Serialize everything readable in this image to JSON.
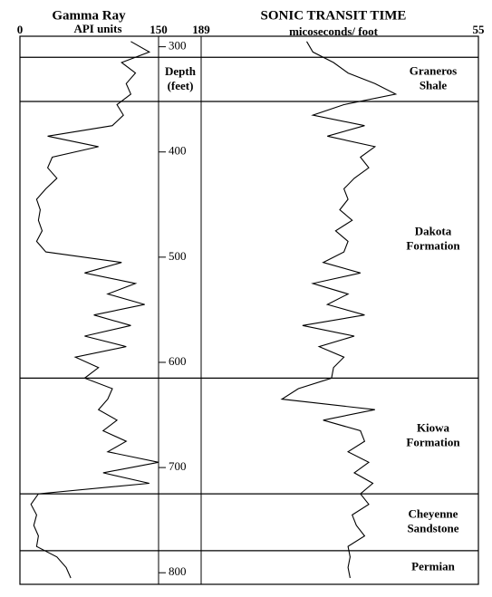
{
  "chart_data": {
    "type": "well-log",
    "depth_label": [
      "Depth",
      "(feet)"
    ],
    "ylim": [
      290,
      811
    ],
    "yticks": [
      300,
      400,
      500,
      600,
      700,
      800
    ],
    "depth": [
      295,
      305,
      315,
      325,
      335,
      345,
      355,
      365,
      375,
      385,
      395,
      405,
      415,
      425,
      435,
      445,
      455,
      465,
      475,
      485,
      495,
      505,
      515,
      525,
      535,
      545,
      555,
      565,
      575,
      585,
      595,
      605,
      615,
      625,
      635,
      645,
      655,
      665,
      675,
      685,
      695,
      705,
      715,
      725,
      735,
      745,
      755,
      765,
      775,
      785,
      795,
      805
    ],
    "tracks": [
      {
        "title": "Gamma Ray",
        "units": "API units",
        "xlim": [
          0,
          150
        ],
        "xticks": [
          0,
          150
        ],
        "color": "#000000",
        "values": [
          120,
          140,
          110,
          125,
          115,
          120,
          105,
          112,
          100,
          30,
          85,
          35,
          30,
          40,
          28,
          18,
          22,
          20,
          24,
          18,
          28,
          110,
          70,
          125,
          95,
          135,
          80,
          120,
          70,
          115,
          60,
          85,
          70,
          100,
          95,
          85,
          105,
          90,
          115,
          95,
          150,
          90,
          140,
          20,
          12,
          18,
          15,
          20,
          18,
          40,
          50,
          55
        ]
      },
      {
        "title": "SONIC TRANSIT TIME",
        "units": "micoseconds/ foot",
        "xlim": [
          189,
          55
        ],
        "xticks": [
          189,
          55
        ],
        "color": "#000000",
        "values": [
          138,
          135,
          125,
          118,
          105,
          95,
          120,
          135,
          110,
          128,
          105,
          112,
          108,
          115,
          120,
          118,
          122,
          116,
          124,
          118,
          120,
          130,
          112,
          135,
          118,
          128,
          110,
          140,
          115,
          132,
          120,
          125,
          126,
          142,
          150,
          105,
          130,
          112,
          110,
          118,
          108,
          115,
          106,
          112,
          108,
          116,
          114,
          110,
          118,
          117,
          118,
          117
        ]
      }
    ],
    "formations": [
      {
        "name": [
          "Graneros",
          "Shale"
        ],
        "top": 310
      },
      {
        "name": [
          "Dakota",
          "Formation"
        ],
        "top": 352
      },
      {
        "name": [
          "Kiowa",
          "Formation"
        ],
        "top": 615
      },
      {
        "name": [
          "Cheyenne",
          "Sandstone"
        ],
        "top": 725
      },
      {
        "name": [
          "Permian"
        ],
        "top": 779
      }
    ]
  }
}
